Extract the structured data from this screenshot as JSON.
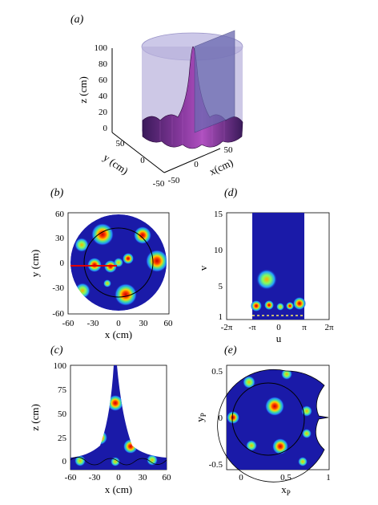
{
  "panels": {
    "a": {
      "label": "(a)",
      "zlabel": "z (cm)",
      "ylabel": "y (cm)",
      "xlabel": "x(cm)",
      "zticks": [
        "100",
        "80",
        "60",
        "40",
        "20",
        "0"
      ],
      "yticks": [
        "50",
        "0",
        "-50"
      ],
      "xticks": [
        "50",
        "0",
        "-50"
      ]
    },
    "b": {
      "label": "(b)",
      "ylabel": "y (cm)",
      "xlabel": "x (cm)",
      "yticks": [
        "60",
        "30",
        "0",
        "-30",
        "-60"
      ],
      "xticks": [
        "-60",
        "-30",
        "0",
        "30",
        "60"
      ]
    },
    "c": {
      "label": "(c)",
      "ylabel": "z (cm)",
      "xlabel": "x (cm)",
      "yticks": [
        "100",
        "75",
        "50",
        "25",
        "0"
      ],
      "xticks": [
        "-60",
        "-30",
        "0",
        "30",
        "60"
      ]
    },
    "d": {
      "label": "(d)",
      "ylabel": "v",
      "xlabel": "u",
      "yticks": [
        "15",
        "10",
        "5",
        "1"
      ],
      "xticks": [
        "-2π",
        "-π",
        "0",
        "π",
        "2π"
      ]
    },
    "e": {
      "label": "(e)",
      "ylabel": "y",
      "ylabel_sub": "P",
      "xlabel": "x",
      "xlabel_sub": "P",
      "yticks": [
        "0.5",
        "0",
        "-0.5"
      ],
      "xticks": [
        "0",
        "0.5",
        "1"
      ]
    }
  },
  "colors": {
    "field_background": "#1a1aa8",
    "hot_spot": "#e60000",
    "surface": "#5a2a7a",
    "cylinder": "#b8b0dc",
    "red_ray": "#e00000"
  }
}
